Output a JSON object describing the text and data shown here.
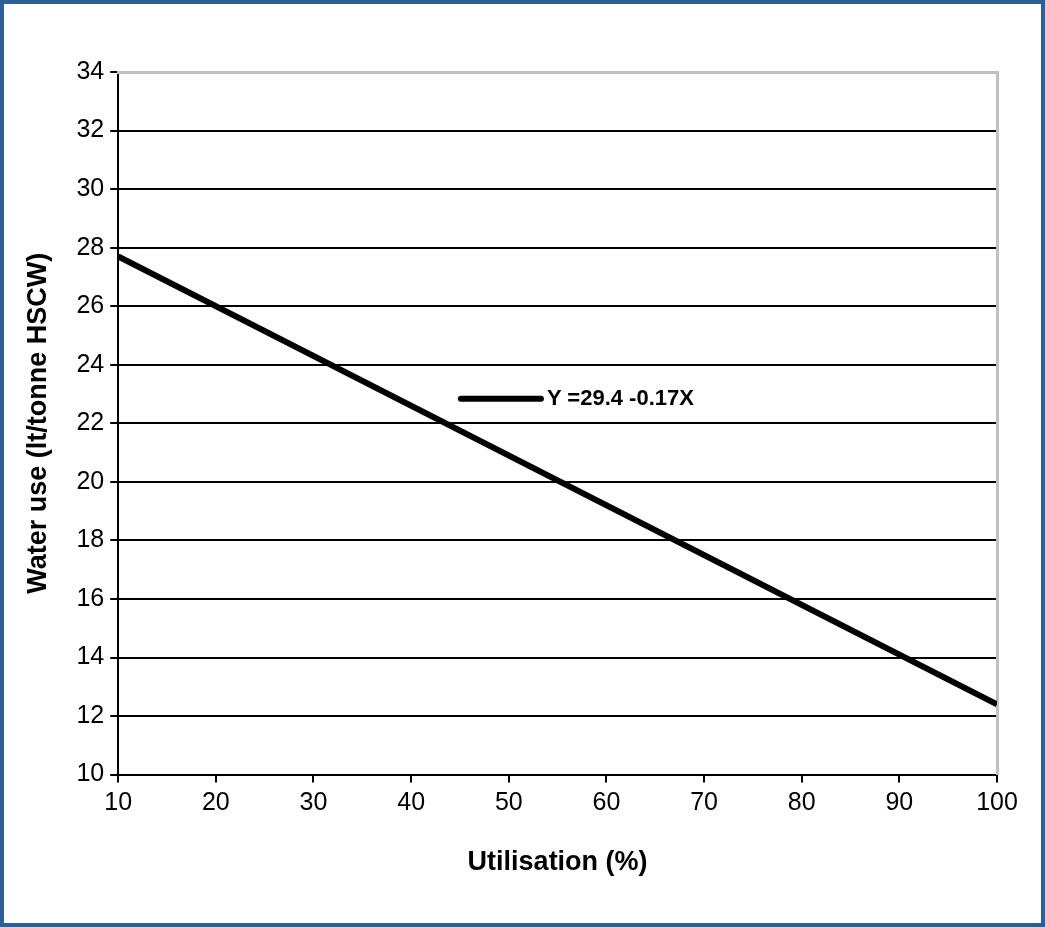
{
  "chart_data": {
    "type": "line",
    "xlabel": "Utilisation (%)",
    "ylabel": "Water use (lt/tonne HSCW)",
    "x": [
      10,
      100
    ],
    "series": [
      {
        "name": "Y =29.4 -0.17X",
        "color": "#000000",
        "values": [
          27.7,
          12.4
        ]
      }
    ],
    "xlim": [
      10,
      100
    ],
    "xticks": [
      10,
      20,
      30,
      40,
      50,
      60,
      70,
      80,
      90,
      100
    ],
    "ylim": [
      10,
      34
    ],
    "yticks": [
      10,
      12,
      14,
      16,
      18,
      20,
      22,
      24,
      26,
      28,
      30,
      32,
      34
    ],
    "grid": "y",
    "legend": "center",
    "marker": "none",
    "line_style": "solid"
  }
}
